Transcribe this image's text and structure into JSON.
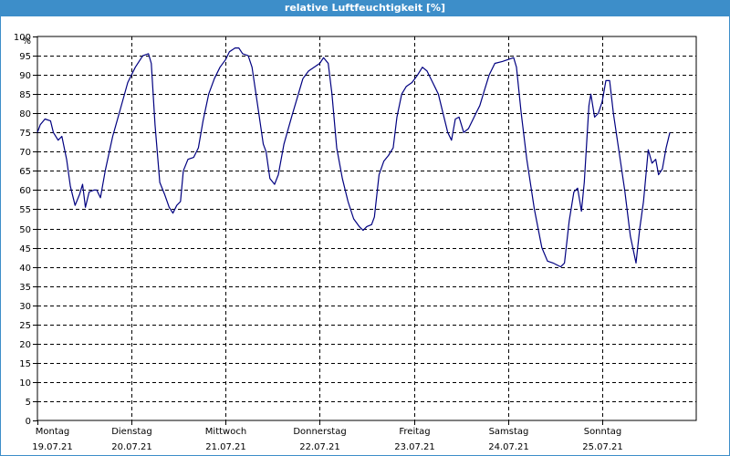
{
  "window": {
    "title": "relative Luftfeuchtigkeit [%]"
  },
  "colors": {
    "titlebar": "#3d8ec9",
    "line": "#000080",
    "grid": "#000000"
  },
  "chart_data": {
    "type": "line",
    "title": "relative Luftfeuchtigkeit [%]",
    "ylabel": "%",
    "ylim": [
      0,
      100
    ],
    "yticks": [
      0,
      5,
      10,
      15,
      20,
      25,
      30,
      35,
      40,
      45,
      50,
      55,
      60,
      65,
      70,
      75,
      80,
      85,
      90,
      95,
      100
    ],
    "xlim": [
      0,
      7
    ],
    "grid": true,
    "x_tick_labels": [
      {
        "day": "Montag",
        "date": "19.07.21"
      },
      {
        "day": "Dienstag",
        "date": "20.07.21"
      },
      {
        "day": "Mittwoch",
        "date": "21.07.21"
      },
      {
        "day": "Donnerstag",
        "date": "22.07.21"
      },
      {
        "day": "Freitag",
        "date": "23.07.21"
      },
      {
        "day": "Samstag",
        "date": "24.07.21"
      },
      {
        "day": "Sonntag",
        "date": "25.07.21"
      }
    ],
    "series": [
      {
        "color": "#000080",
        "points": [
          [
            0.0,
            75
          ],
          [
            0.03,
            77
          ],
          [
            0.08,
            78.5
          ],
          [
            0.14,
            78
          ],
          [
            0.17,
            75
          ],
          [
            0.22,
            73
          ],
          [
            0.26,
            74
          ],
          [
            0.31,
            68
          ],
          [
            0.35,
            61
          ],
          [
            0.4,
            56
          ],
          [
            0.45,
            59
          ],
          [
            0.48,
            61.5
          ],
          [
            0.51,
            55.5
          ],
          [
            0.55,
            59.5
          ],
          [
            0.6,
            60
          ],
          [
            0.63,
            60
          ],
          [
            0.67,
            58
          ],
          [
            0.72,
            65
          ],
          [
            0.8,
            74
          ],
          [
            0.88,
            81
          ],
          [
            0.96,
            88
          ],
          [
            1.04,
            92
          ],
          [
            1.12,
            95
          ],
          [
            1.18,
            95.5
          ],
          [
            1.21,
            93
          ],
          [
            1.25,
            77
          ],
          [
            1.3,
            62
          ],
          [
            1.35,
            59
          ],
          [
            1.4,
            55.5
          ],
          [
            1.44,
            54
          ],
          [
            1.48,
            56
          ],
          [
            1.52,
            57
          ],
          [
            1.55,
            65
          ],
          [
            1.6,
            68
          ],
          [
            1.66,
            68.5
          ],
          [
            1.71,
            71
          ],
          [
            1.76,
            78
          ],
          [
            1.82,
            85
          ],
          [
            1.88,
            89
          ],
          [
            1.94,
            92
          ],
          [
            2.0,
            94
          ],
          [
            2.04,
            96
          ],
          [
            2.1,
            97
          ],
          [
            2.14,
            97
          ],
          [
            2.18,
            95.5
          ],
          [
            2.24,
            95
          ],
          [
            2.28,
            92
          ],
          [
            2.34,
            82
          ],
          [
            2.4,
            72
          ],
          [
            2.43,
            70
          ],
          [
            2.47,
            63
          ],
          [
            2.52,
            61.5
          ],
          [
            2.56,
            64
          ],
          [
            2.62,
            72
          ],
          [
            2.7,
            79
          ],
          [
            2.76,
            84
          ],
          [
            2.82,
            89
          ],
          [
            2.88,
            91
          ],
          [
            2.94,
            92
          ],
          [
            3.0,
            93
          ],
          [
            3.04,
            94.5
          ],
          [
            3.09,
            93
          ],
          [
            3.13,
            85
          ],
          [
            3.18,
            71
          ],
          [
            3.24,
            63
          ],
          [
            3.3,
            57
          ],
          [
            3.36,
            52.5
          ],
          [
            3.42,
            50.5
          ],
          [
            3.46,
            49.5
          ],
          [
            3.5,
            50.5
          ],
          [
            3.55,
            51
          ],
          [
            3.58,
            53
          ],
          [
            3.63,
            64
          ],
          [
            3.68,
            67.5
          ],
          [
            3.73,
            69
          ],
          [
            3.78,
            71
          ],
          [
            3.82,
            79
          ],
          [
            3.87,
            85
          ],
          [
            3.92,
            87
          ],
          [
            3.98,
            88
          ],
          [
            4.04,
            90
          ],
          [
            4.09,
            92
          ],
          [
            4.14,
            91
          ],
          [
            4.2,
            88
          ],
          [
            4.26,
            85
          ],
          [
            4.31,
            80
          ],
          [
            4.36,
            75
          ],
          [
            4.4,
            73
          ],
          [
            4.44,
            78.5
          ],
          [
            4.48,
            79
          ],
          [
            4.53,
            75
          ],
          [
            4.58,
            76
          ],
          [
            4.62,
            78
          ],
          [
            4.66,
            80
          ],
          [
            4.7,
            82
          ],
          [
            4.75,
            86
          ],
          [
            4.8,
            90
          ],
          [
            4.86,
            93
          ],
          [
            4.94,
            93.5
          ],
          [
            5.0,
            94
          ],
          [
            5.06,
            94.5
          ],
          [
            5.09,
            92
          ],
          [
            5.14,
            80
          ],
          [
            5.2,
            68
          ],
          [
            5.28,
            55
          ],
          [
            5.36,
            45
          ],
          [
            5.42,
            41.5
          ],
          [
            5.48,
            41
          ],
          [
            5.52,
            40.5
          ],
          [
            5.56,
            40
          ],
          [
            5.6,
            41
          ],
          [
            5.65,
            52
          ],
          [
            5.7,
            59.5
          ],
          [
            5.74,
            60.5
          ],
          [
            5.78,
            54.5
          ],
          [
            5.81,
            62
          ],
          [
            5.86,
            82
          ],
          [
            5.88,
            85
          ],
          [
            5.92,
            79
          ],
          [
            5.96,
            80
          ],
          [
            6.0,
            83
          ],
          [
            6.04,
            88.5
          ],
          [
            6.08,
            88.5
          ],
          [
            6.12,
            80
          ],
          [
            6.18,
            70
          ],
          [
            6.24,
            60
          ],
          [
            6.3,
            48
          ],
          [
            6.36,
            41
          ],
          [
            6.4,
            50
          ],
          [
            6.44,
            57
          ],
          [
            6.47,
            65
          ],
          [
            6.49,
            70.5
          ],
          [
            6.53,
            67
          ],
          [
            6.57,
            68
          ],
          [
            6.6,
            64
          ],
          [
            6.64,
            65.5
          ],
          [
            6.68,
            71
          ],
          [
            6.72,
            75
          ]
        ]
      }
    ]
  }
}
